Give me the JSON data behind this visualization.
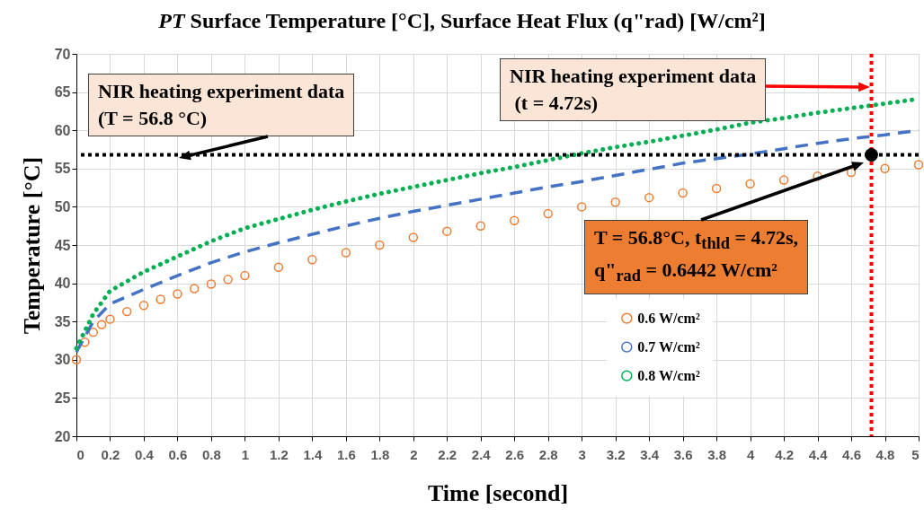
{
  "chart_data": {
    "type": "line",
    "title": "PT Surface Temperature [°C], Surface Heat Flux (q\"rad) [W/cm²]",
    "xlabel": "Time [second]",
    "ylabel": "Temperature [°C]",
    "xlim": [
      0,
      5
    ],
    "xticks": [
      0,
      0.2,
      0.4,
      0.6,
      0.8,
      1,
      1.2,
      1.4,
      1.6,
      1.8,
      2,
      2.2,
      2.4,
      2.6,
      2.8,
      3,
      3.2,
      3.4,
      3.6,
      3.8,
      4,
      4.2,
      4.4,
      4.6,
      4.8,
      5
    ],
    "ylim": [
      20,
      70
    ],
    "yticks": [
      20,
      25,
      30,
      35,
      40,
      45,
      50,
      55,
      60,
      65,
      70
    ],
    "grid": true,
    "legend": "bottom right",
    "series": [
      {
        "name": "0.6 W/cm²",
        "type": "scatter",
        "marker": "circle",
        "color": "#ed7d31",
        "x": [
          0,
          0.05,
          0.1,
          0.15,
          0.2,
          0.3,
          0.4,
          0.5,
          0.6,
          0.7,
          0.8,
          0.9,
          1,
          1.2,
          1.4,
          1.6,
          1.8,
          2,
          2.2,
          2.4,
          2.6,
          2.8,
          3,
          3.2,
          3.4,
          3.6,
          3.8,
          4,
          4.2,
          4.4,
          4.6,
          4.8,
          5
        ],
        "values": [
          30,
          32.3,
          33.6,
          34.6,
          35.3,
          36.3,
          37.1,
          37.9,
          38.6,
          39.3,
          39.9,
          40.5,
          41,
          42.1,
          43.1,
          44,
          45,
          46,
          46.8,
          47.5,
          48.2,
          49.1,
          50,
          50.6,
          51.2,
          51.8,
          52.4,
          53,
          53.5,
          54,
          54.5,
          55,
          55.5
        ]
      },
      {
        "name": "0.7 W/cm²",
        "line_style": "dashed",
        "color": "#4472c4",
        "x": [
          0,
          0.1,
          0.2,
          0.4,
          0.6,
          0.8,
          1,
          1.2,
          1.4,
          1.6,
          1.8,
          2,
          2.2,
          2.4,
          2.6,
          2.8,
          3,
          3.2,
          3.4,
          3.6,
          3.8,
          4,
          4.2,
          4.4,
          4.6,
          4.8,
          5
        ],
        "values": [
          31,
          35,
          37.3,
          39.2,
          41,
          42.7,
          44.1,
          45.3,
          46.4,
          47.5,
          48.5,
          49.4,
          50.2,
          51,
          51.8,
          52.6,
          53.3,
          54.1,
          54.9,
          55.7,
          56.3,
          56.9,
          57.6,
          58.3,
          58.9,
          59.4,
          60
        ]
      },
      {
        "name": "0.8 W/cm²",
        "line_style": "dotted",
        "color": "#00b050",
        "x": [
          0,
          0.1,
          0.2,
          0.4,
          0.6,
          0.8,
          1,
          1.2,
          1.4,
          1.6,
          1.8,
          2,
          2.2,
          2.4,
          2.6,
          2.8,
          3,
          3.2,
          3.4,
          3.6,
          3.8,
          4,
          4.2,
          4.4,
          4.6,
          4.8,
          5
        ],
        "values": [
          31.5,
          36,
          39,
          41.5,
          43.5,
          45.5,
          47.2,
          48.4,
          49.6,
          50.7,
          51.7,
          52.6,
          53.5,
          54.4,
          55.2,
          56.1,
          57,
          57.8,
          58.5,
          59.3,
          60.1,
          61,
          61.6,
          62.3,
          62.9,
          63.5,
          64.1
        ]
      },
      {
        "type": "scatter",
        "marker": "circle",
        "color": "#000000",
        "x": [
          4.72
        ],
        "values": [
          56.8
        ]
      }
    ],
    "ref_lines": [
      {
        "axis": "y",
        "value": 56.8,
        "color": "#000000",
        "line_style": "dotted"
      },
      {
        "axis": "x",
        "value": 4.72,
        "color": "#ff0000",
        "line_style": "dotted"
      }
    ],
    "annotations": [
      "NIR heating experiment data\n(T = 56.8 °C)",
      "NIR heating experiment data\n (t = 4.72s)",
      "T = 56.8°C, t$_{thld}$ = 4.72s,\nq\"$_{rad}$ = 0.6442 W/cm²"
    ]
  }
}
